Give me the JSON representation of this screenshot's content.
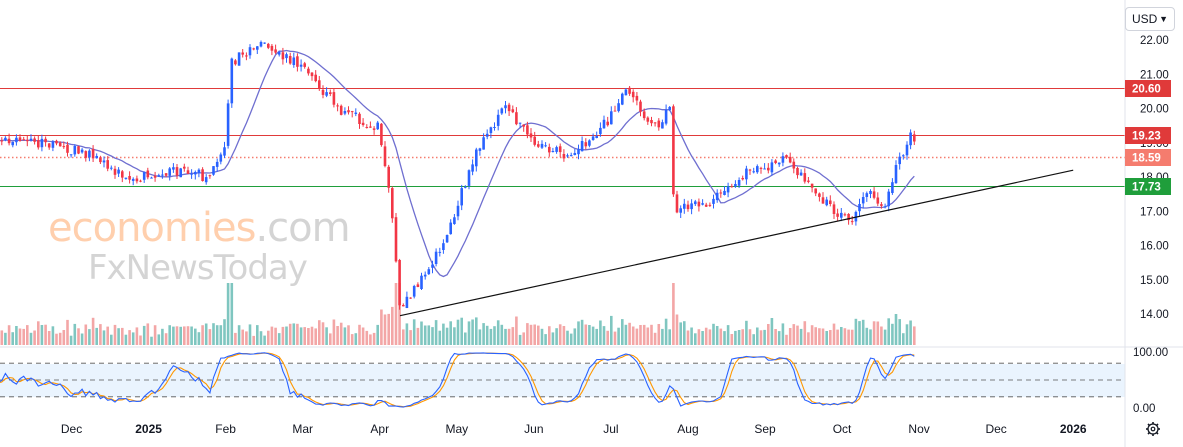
{
  "currency": {
    "label": "USD"
  },
  "watermark": {
    "brand_main": "economies",
    "brand_suffix": ".com",
    "brand_sub": "FxNewsToday"
  },
  "colors": {
    "up": "#2962ff",
    "down": "#f23645",
    "ma": "#6f6fd0",
    "resistance": "#e03a3a",
    "support": "#1f9e3b",
    "current": "#f57c6e",
    "trendline": "#111111",
    "stoch_k": "#2962ff",
    "stoch_d": "#ff9800",
    "vol_up": "#7fc6c0",
    "vol_down": "#f3a6a6"
  },
  "chart_data": [
    {
      "type": "candlestick",
      "title": "",
      "x_labels": [
        "Dec",
        "2025",
        "Feb",
        "Mar",
        "Apr",
        "May",
        "Jun",
        "Jul",
        "Aug",
        "Sep",
        "Oct",
        "Nov",
        "Dec",
        "2026"
      ],
      "y_ticks": [
        "22.00",
        "21.00",
        "20.00",
        "19.00",
        "18.00",
        "17.00",
        "16.00",
        "15.00",
        "14.00"
      ],
      "ylim": [
        13.0,
        22.3
      ],
      "grid": false,
      "price_lines": [
        {
          "value": 20.6,
          "label": "20.60",
          "role": "resistance"
        },
        {
          "value": 19.23,
          "label": "19.23",
          "role": "resistance"
        },
        {
          "value": 18.59,
          "label": "18.59",
          "role": "current"
        },
        {
          "value": 17.73,
          "label": "17.73",
          "role": "support"
        }
      ],
      "trendline": {
        "start": {
          "x": "Apr 9",
          "y": 13.95
        },
        "end": {
          "x": "Jan 2026",
          "y": 18.2
        }
      },
      "moving_average": {
        "ends": "Oct 30",
        "last": 17.95
      },
      "price_path": [
        [
          "Nov 1",
          19.1
        ],
        [
          "Nov 20",
          19.0
        ],
        [
          "Dec 10",
          18.6
        ],
        [
          "Dec 25",
          17.9
        ],
        [
          "Jan 10",
          18.2
        ],
        [
          "Jan 25",
          18.0
        ],
        [
          "Jan 31",
          18.7
        ],
        [
          "Feb 3",
          21.3
        ],
        [
          "Feb 15",
          22.0
        ],
        [
          "Mar 1",
          21.2
        ],
        [
          "Mar 15",
          20.0
        ],
        [
          "Apr 1",
          19.4
        ],
        [
          "Apr 5",
          17.5
        ],
        [
          "Apr 9",
          14.1
        ],
        [
          "Apr 25",
          15.9
        ],
        [
          "May 10",
          18.9
        ],
        [
          "May 20",
          20.1
        ],
        [
          "Jun 1",
          19.0
        ],
        [
          "Jun 15",
          18.6
        ],
        [
          "Jun 30",
          19.6
        ],
        [
          "Jul 7",
          20.5
        ],
        [
          "Jul 20",
          19.3
        ],
        [
          "Jul 24",
          20.4
        ],
        [
          "Jul 26",
          17.0
        ],
        [
          "Aug 10",
          17.3
        ],
        [
          "Aug 25",
          18.2
        ],
        [
          "Sep 10",
          18.5
        ],
        [
          "Sep 25",
          17.2
        ],
        [
          "Oct 5",
          16.7
        ],
        [
          "Oct 10",
          17.6
        ],
        [
          "Oct 18",
          17.1
        ],
        [
          "Oct 22",
          18.3
        ],
        [
          "Oct 28",
          19.2
        ],
        [
          "Oct 31",
          18.6
        ]
      ]
    },
    {
      "type": "line",
      "indicator": "stochastic",
      "y_ticks": [
        "100.00",
        "0.00"
      ],
      "ylim": [
        0,
        100
      ],
      "levels": [
        80,
        50,
        20
      ]
    }
  ]
}
